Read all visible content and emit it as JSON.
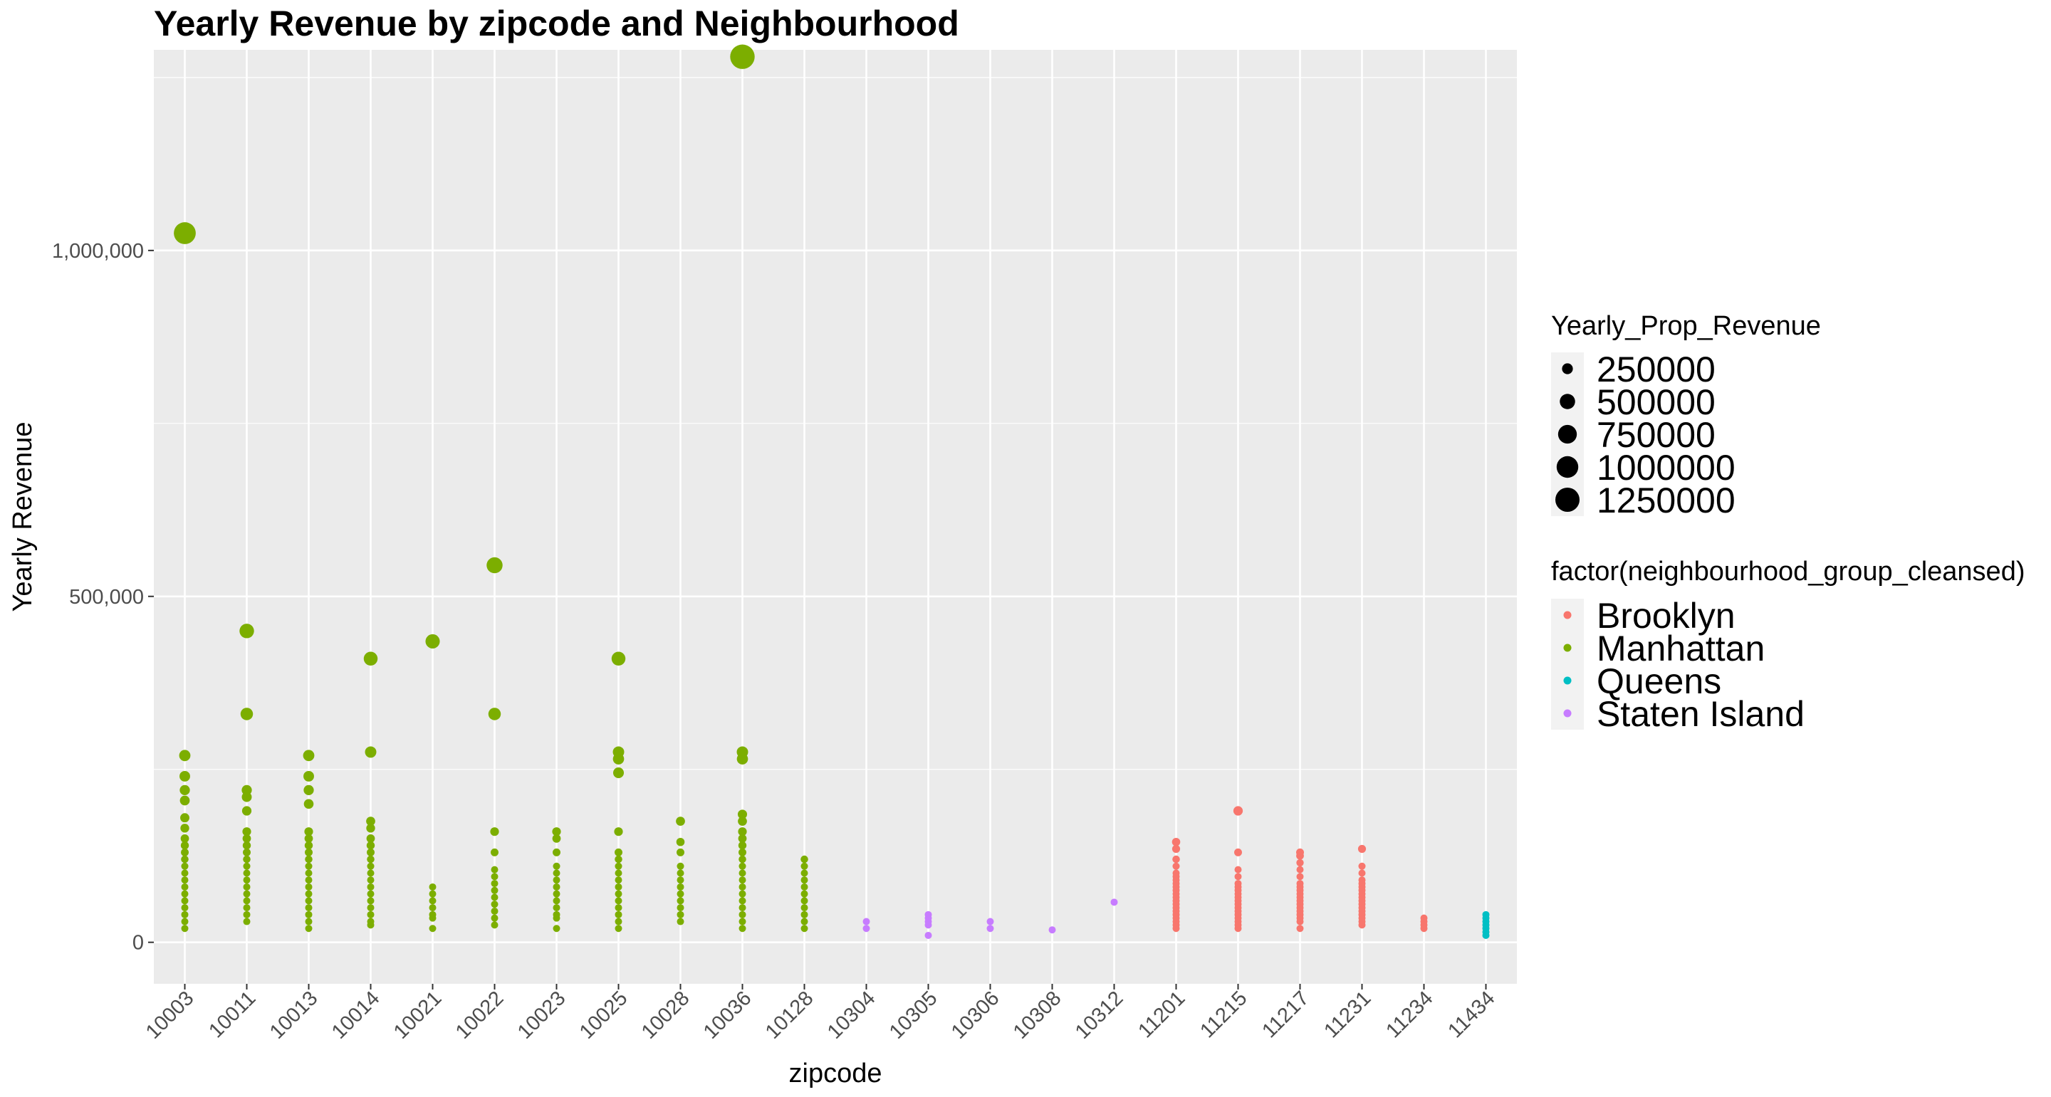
{
  "chart_data": {
    "type": "scatter",
    "title": "Yearly Revenue by zipcode and Neighbourhood",
    "xlabel": "zipcode",
    "ylabel": "Yearly Revenue",
    "categories": [
      "10003",
      "10011",
      "10013",
      "10014",
      "10021",
      "10022",
      "10023",
      "10025",
      "10028",
      "10036",
      "10128",
      "10304",
      "10305",
      "10306",
      "10308",
      "10312",
      "11201",
      "11215",
      "11217",
      "11231",
      "11234",
      "11434"
    ],
    "ylim": [
      -60000,
      1290000
    ],
    "yticks": [
      0,
      500000,
      1000000
    ],
    "ytick_labels": [
      "0",
      "500,000",
      "1,000,000"
    ],
    "grid": true,
    "size_legend": {
      "title": "Yearly_Prop_Revenue",
      "values": [
        250000,
        500000,
        750000,
        1000000,
        1250000
      ],
      "labels": [
        "250000",
        "500000",
        "750000",
        "1000000",
        "1250000"
      ],
      "color": "#000000"
    },
    "color_legend": {
      "title": "factor(neighbourhood_group_cleansed)",
      "position": "right"
    },
    "series": [
      {
        "name": "Brooklyn",
        "color": "#F8766D",
        "points": [
          {
            "x": "11201",
            "y": [
              145000,
              135000,
              120000,
              110000,
              100000,
              95000,
              90000,
              85000,
              80000,
              75000,
              70000,
              65000,
              60000,
              55000,
              50000,
              45000,
              40000,
              35000,
              30000,
              25000,
              20000
            ]
          },
          {
            "x": "11215",
            "y": [
              190000,
              130000,
              105000,
              95000,
              85000,
              80000,
              75000,
              70000,
              65000,
              60000,
              55000,
              50000,
              45000,
              40000,
              35000,
              30000,
              25000,
              20000
            ]
          },
          {
            "x": "11217",
            "y": [
              130000,
              125000,
              115000,
              105000,
              95000,
              85000,
              80000,
              75000,
              70000,
              65000,
              60000,
              55000,
              50000,
              45000,
              40000,
              35000,
              30000,
              20000
            ]
          },
          {
            "x": "11231",
            "y": [
              135000,
              110000,
              100000,
              90000,
              85000,
              80000,
              75000,
              70000,
              65000,
              60000,
              55000,
              50000,
              45000,
              40000,
              35000,
              30000,
              25000
            ]
          },
          {
            "x": "11234",
            "y": [
              35000,
              30000,
              25000,
              20000
            ]
          }
        ]
      },
      {
        "name": "Manhattan",
        "color": "#7CAE00",
        "points": [
          {
            "x": "10003",
            "y": [
              1025000,
              270000,
              240000,
              220000,
              205000,
              180000,
              165000,
              150000,
              140000,
              130000,
              120000,
              110000,
              100000,
              90000,
              80000,
              70000,
              60000,
              50000,
              40000,
              30000,
              20000
            ]
          },
          {
            "x": "10011",
            "y": [
              450000,
              330000,
              220000,
              210000,
              190000,
              160000,
              150000,
              140000,
              130000,
              120000,
              110000,
              100000,
              90000,
              80000,
              70000,
              60000,
              50000,
              40000,
              30000
            ]
          },
          {
            "x": "10013",
            "y": [
              270000,
              240000,
              220000,
              200000,
              160000,
              150000,
              140000,
              130000,
              120000,
              110000,
              100000,
              90000,
              80000,
              70000,
              60000,
              50000,
              40000,
              30000,
              20000
            ]
          },
          {
            "x": "10014",
            "y": [
              410000,
              275000,
              175000,
              165000,
              150000,
              140000,
              130000,
              120000,
              110000,
              100000,
              90000,
              80000,
              70000,
              60000,
              50000,
              40000,
              30000,
              25000
            ]
          },
          {
            "x": "10021",
            "y": [
              435000,
              80000,
              70000,
              60000,
              50000,
              40000,
              35000,
              20000
            ]
          },
          {
            "x": "10022",
            "y": [
              545000,
              330000,
              160000,
              130000,
              105000,
              95000,
              85000,
              75000,
              65000,
              55000,
              45000,
              35000,
              25000
            ]
          },
          {
            "x": "10023",
            "y": [
              160000,
              150000,
              130000,
              110000,
              100000,
              90000,
              80000,
              70000,
              60000,
              50000,
              40000,
              35000,
              20000
            ]
          },
          {
            "x": "10025",
            "y": [
              410000,
              275000,
              265000,
              245000,
              160000,
              130000,
              120000,
              110000,
              100000,
              90000,
              80000,
              70000,
              60000,
              50000,
              40000,
              30000,
              20000
            ]
          },
          {
            "x": "10028",
            "y": [
              175000,
              145000,
              130000,
              110000,
              100000,
              90000,
              80000,
              70000,
              60000,
              50000,
              40000,
              30000
            ]
          },
          {
            "x": "10036",
            "y": [
              1280000,
              275000,
              265000,
              185000,
              175000,
              160000,
              150000,
              140000,
              130000,
              120000,
              110000,
              100000,
              90000,
              80000,
              70000,
              60000,
              50000,
              40000,
              30000,
              20000
            ]
          },
          {
            "x": "10128",
            "y": [
              120000,
              110000,
              100000,
              90000,
              80000,
              70000,
              60000,
              50000,
              40000,
              30000,
              20000
            ]
          }
        ]
      },
      {
        "name": "Queens",
        "color": "#00BFC4",
        "points": [
          {
            "x": "11434",
            "y": [
              40000,
              35000,
              30000,
              25000,
              20000,
              15000,
              10000
            ]
          }
        ]
      },
      {
        "name": "Staten Island",
        "color": "#C77CFF",
        "points": [
          {
            "x": "10304",
            "y": [
              30000,
              20000
            ]
          },
          {
            "x": "10305",
            "y": [
              40000,
              35000,
              30000,
              25000,
              10000
            ]
          },
          {
            "x": "10306",
            "y": [
              30000,
              20000
            ]
          },
          {
            "x": "10308",
            "y": [
              18000
            ]
          },
          {
            "x": "10312",
            "y": [
              58000
            ]
          }
        ]
      }
    ]
  }
}
